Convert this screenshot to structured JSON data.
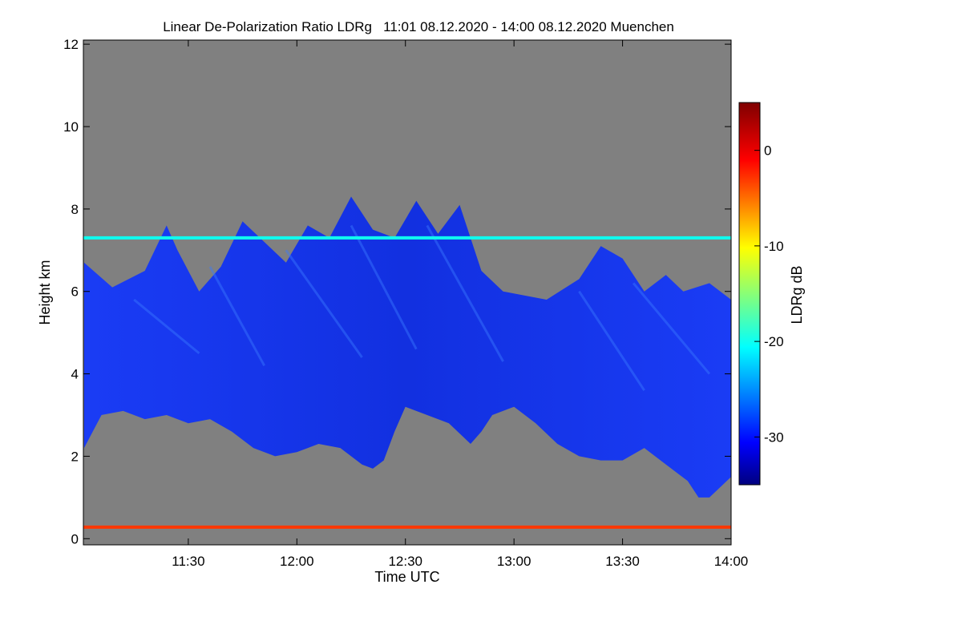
{
  "chart_data": {
    "type": "heatmap",
    "title": "Linear De-Polarization Ratio LDRg   11:01 08.12.2020 - 14:00 08.12.2020 Muenchen",
    "xlabel": "Time UTC",
    "ylabel": "Height km",
    "colorbar_label": "LDRg dB",
    "xlim_hours": [
      11.0167,
      14.0
    ],
    "ylim_km": [
      -0.15,
      12.1
    ],
    "x_ticks": [
      {
        "hours": 11.5,
        "label": "11:30"
      },
      {
        "hours": 12.0,
        "label": "12:00"
      },
      {
        "hours": 12.5,
        "label": "12:30"
      },
      {
        "hours": 13.0,
        "label": "13:00"
      },
      {
        "hours": 13.5,
        "label": "13:30"
      },
      {
        "hours": 14.0,
        "label": "14:00"
      }
    ],
    "y_ticks": [
      {
        "value": 0,
        "label": "0"
      },
      {
        "value": 2,
        "label": "2"
      },
      {
        "value": 4,
        "label": "4"
      },
      {
        "value": 6,
        "label": "6"
      },
      {
        "value": 8,
        "label": "8"
      },
      {
        "value": 10,
        "label": "10"
      },
      {
        "value": 12,
        "label": "12"
      }
    ],
    "colorbar": {
      "range_db": [
        -35,
        5
      ],
      "ticks": [
        {
          "value": 0,
          "label": "0"
        },
        {
          "value": -10,
          "label": "-10"
        },
        {
          "value": -20,
          "label": "-20"
        },
        {
          "value": -30,
          "label": "-30"
        }
      ]
    },
    "cloud_layer": {
      "description_units": "hours / km",
      "top_km": [
        [
          11.02,
          6.7
        ],
        [
          11.15,
          6.1
        ],
        [
          11.3,
          6.5
        ],
        [
          11.4,
          7.6
        ],
        [
          11.45,
          7.0
        ],
        [
          11.55,
          6.0
        ],
        [
          11.65,
          6.6
        ],
        [
          11.75,
          7.7
        ],
        [
          11.85,
          7.2
        ],
        [
          11.95,
          6.7
        ],
        [
          12.05,
          7.6
        ],
        [
          12.15,
          7.3
        ],
        [
          12.25,
          8.3
        ],
        [
          12.35,
          7.5
        ],
        [
          12.45,
          7.3
        ],
        [
          12.55,
          8.2
        ],
        [
          12.65,
          7.4
        ],
        [
          12.75,
          8.1
        ],
        [
          12.85,
          6.5
        ],
        [
          12.95,
          6.0
        ],
        [
          13.05,
          5.9
        ],
        [
          13.15,
          5.8
        ],
        [
          13.3,
          6.3
        ],
        [
          13.4,
          7.1
        ],
        [
          13.5,
          6.8
        ],
        [
          13.6,
          6.0
        ],
        [
          13.7,
          6.4
        ],
        [
          13.78,
          6.0
        ],
        [
          13.9,
          6.2
        ],
        [
          14.0,
          5.8
        ]
      ],
      "base_km": [
        [
          11.02,
          2.2
        ],
        [
          11.1,
          3.0
        ],
        [
          11.2,
          3.1
        ],
        [
          11.3,
          2.9
        ],
        [
          11.4,
          3.0
        ],
        [
          11.5,
          2.8
        ],
        [
          11.6,
          2.9
        ],
        [
          11.7,
          2.6
        ],
        [
          11.8,
          2.2
        ],
        [
          11.9,
          2.0
        ],
        [
          12.0,
          2.1
        ],
        [
          12.1,
          2.3
        ],
        [
          12.2,
          2.2
        ],
        [
          12.3,
          1.8
        ],
        [
          12.35,
          1.7
        ],
        [
          12.4,
          1.9
        ],
        [
          12.45,
          2.6
        ],
        [
          12.5,
          3.2
        ],
        [
          12.6,
          3.0
        ],
        [
          12.7,
          2.8
        ],
        [
          12.8,
          2.3
        ],
        [
          12.85,
          2.6
        ],
        [
          12.9,
          3.0
        ],
        [
          13.0,
          3.2
        ],
        [
          13.1,
          2.8
        ],
        [
          13.2,
          2.3
        ],
        [
          13.3,
          2.0
        ],
        [
          13.4,
          1.9
        ],
        [
          13.5,
          1.9
        ],
        [
          13.6,
          2.2
        ],
        [
          13.7,
          1.8
        ],
        [
          13.8,
          1.4
        ],
        [
          13.85,
          1.0
        ],
        [
          13.9,
          1.0
        ],
        [
          14.0,
          1.5
        ]
      ]
    },
    "artifact_layers": [
      {
        "height_km": 7.3,
        "ldr_db": -20
      },
      {
        "height_km": 0.28,
        "ldr_db": -3
      }
    ]
  }
}
